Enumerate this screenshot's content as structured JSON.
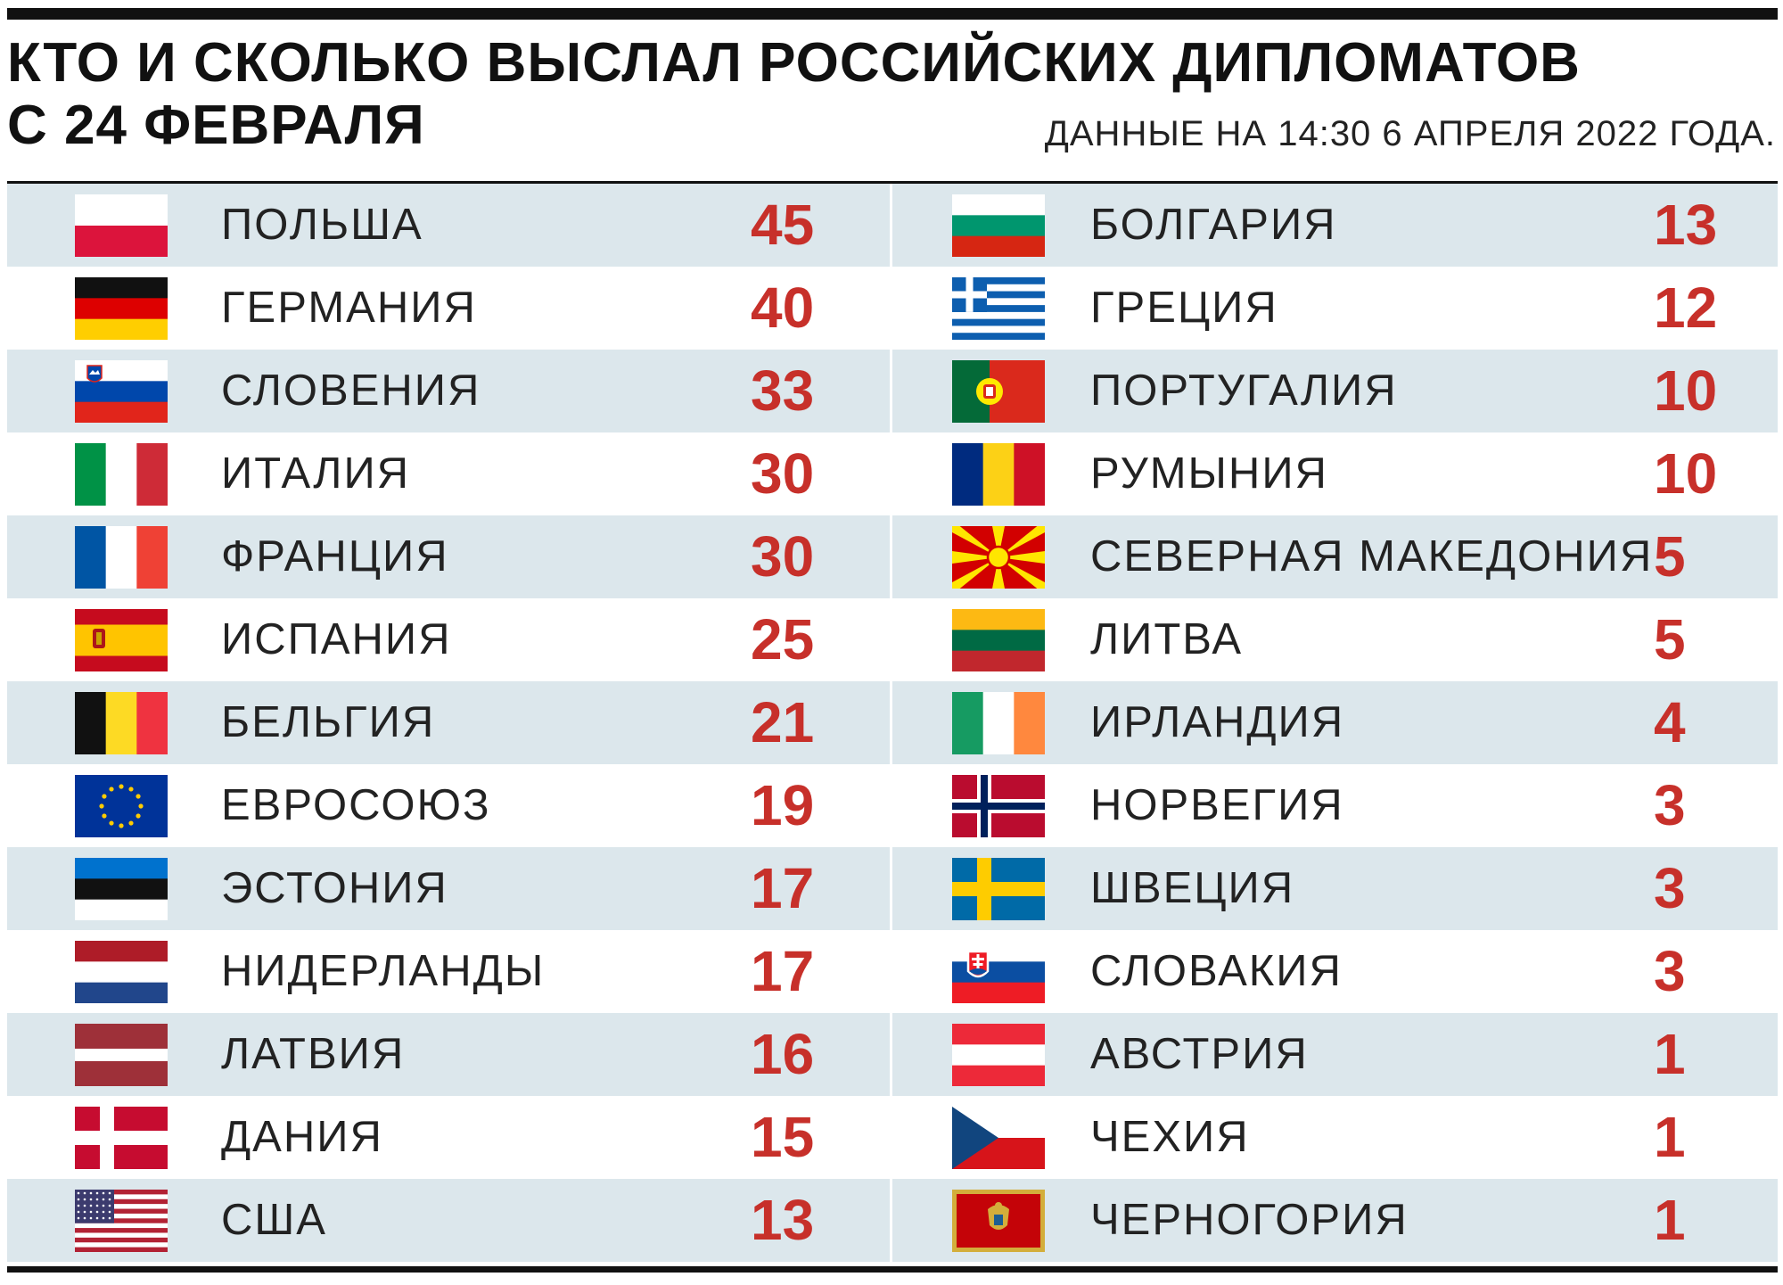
{
  "header": {
    "title_line1": "КТО И СКОЛЬКО ВЫСЛАЛ РОССИЙСКИХ ДИПЛОМАТОВ",
    "title_line2": "С 24 ФЕВРАЛЯ",
    "note": "ДАННЫЕ НА 14:30 6 АПРЕЛЯ 2022 ГОДА."
  },
  "chart_data": {
    "type": "table",
    "title": "КТО И СКОЛЬКО ВЫСЛАЛ РОССИЙСКИХ ДИПЛОМАТОВ С 24 ФЕВРАЛЯ",
    "subtitle": "ДАННЫЕ НА 14:30 6 АПРЕЛЯ 2022 ГОДА.",
    "left_column": [
      {
        "country": "ПОЛЬША",
        "value": 45,
        "flag": "poland-flag"
      },
      {
        "country": "ГЕРМАНИЯ",
        "value": 40,
        "flag": "germany-flag"
      },
      {
        "country": "СЛОВЕНИЯ",
        "value": 33,
        "flag": "slovenia-flag"
      },
      {
        "country": "ИТАЛИЯ",
        "value": 30,
        "flag": "italy-flag"
      },
      {
        "country": "ФРАНЦИЯ",
        "value": 30,
        "flag": "france-flag"
      },
      {
        "country": "ИСПАНИЯ",
        "value": 25,
        "flag": "spain-flag"
      },
      {
        "country": "БЕЛЬГИЯ",
        "value": 21,
        "flag": "belgium-flag"
      },
      {
        "country": "ЕВРОСОЮЗ",
        "value": 19,
        "flag": "eu-flag"
      },
      {
        "country": "ЭСТОНИЯ",
        "value": 17,
        "flag": "estonia-flag"
      },
      {
        "country": "НИДЕРЛАНДЫ",
        "value": 17,
        "flag": "netherlands-flag"
      },
      {
        "country": "ЛАТВИЯ",
        "value": 16,
        "flag": "latvia-flag"
      },
      {
        "country": "ДАНИЯ",
        "value": 15,
        "flag": "denmark-flag"
      },
      {
        "country": "США",
        "value": 13,
        "flag": "usa-flag"
      }
    ],
    "right_column": [
      {
        "country": "БОЛГАРИЯ",
        "value": 13,
        "flag": "bulgaria-flag"
      },
      {
        "country": "ГРЕЦИЯ",
        "value": 12,
        "flag": "greece-flag"
      },
      {
        "country": "ПОРТУГАЛИЯ",
        "value": 10,
        "flag": "portugal-flag"
      },
      {
        "country": "РУМЫНИЯ",
        "value": 10,
        "flag": "romania-flag"
      },
      {
        "country": "СЕВЕРНАЯ МАКЕДОНИЯ",
        "value": 5,
        "flag": "north-macedonia-flag"
      },
      {
        "country": "ЛИТВА",
        "value": 5,
        "flag": "lithuania-flag"
      },
      {
        "country": "ИРЛАНДИЯ",
        "value": 4,
        "flag": "ireland-flag"
      },
      {
        "country": "НОРВЕГИЯ",
        "value": 3,
        "flag": "norway-flag"
      },
      {
        "country": "ШВЕЦИЯ",
        "value": 3,
        "flag": "sweden-flag"
      },
      {
        "country": "СЛОВАКИЯ",
        "value": 3,
        "flag": "slovakia-flag"
      },
      {
        "country": "АВСТРИЯ",
        "value": 1,
        "flag": "austria-flag"
      },
      {
        "country": "ЧЕХИЯ",
        "value": 1,
        "flag": "czechia-flag"
      },
      {
        "country": "ЧЕРНОГОРИЯ",
        "value": 1,
        "flag": "montenegro-flag"
      }
    ],
    "row_shading": "alternating, first row shaded",
    "colors": {
      "value": "#c7302a",
      "text": "#222222",
      "shade": "#dce7ec",
      "rule": "#111111"
    }
  }
}
